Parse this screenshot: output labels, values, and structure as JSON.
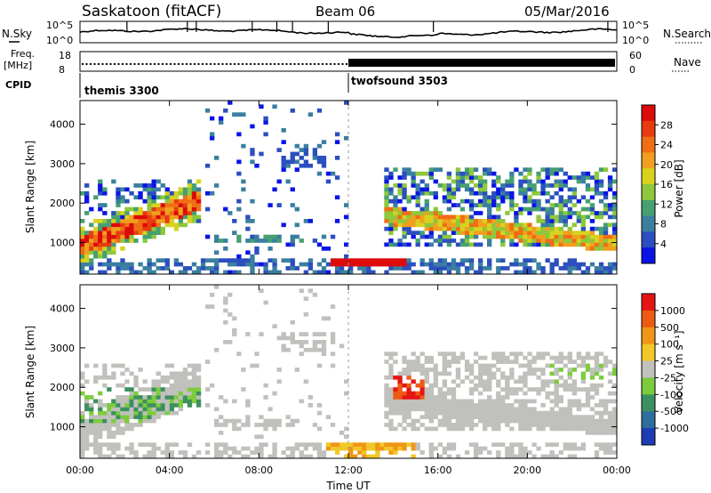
{
  "header": {
    "station": "Saskatoon (fitACF)",
    "beam": "Beam 06",
    "date": "05/Mar/2016"
  },
  "noise_panel": {
    "left_label": "N.Sky",
    "right_label": "N.Search",
    "y_ticks": [
      "10^5",
      "10^0"
    ]
  },
  "freq_panel": {
    "left_label_1": "Freq.",
    "left_label_2": "[MHz]",
    "left_ticks": [
      "18",
      "8"
    ],
    "right_label": "Nave",
    "right_ticks": [
      "60",
      "0"
    ]
  },
  "cpid": {
    "label": "CPID",
    "segments": [
      {
        "name": "themis 3300",
        "start_hour": 0
      },
      {
        "name": "twofsound 3503",
        "start_hour": 12
      }
    ]
  },
  "chart_data": [
    {
      "type": "heatmap",
      "title": "",
      "ylabel": "Slant Range [km]",
      "xlabel": "",
      "ylim": [
        200,
        4600
      ],
      "y_ticks": [
        1000,
        2000,
        3000,
        4000
      ],
      "colorbar": {
        "label": "Power [dB]",
        "ticks": [
          "4",
          "8",
          "12",
          "16",
          "20",
          "24",
          "28"
        ],
        "colors": [
          "#0a14e6",
          "#2b4fbf",
          "#3a7fa0",
          "#46a070",
          "#8ec83c",
          "#d8d21e",
          "#f0a01e",
          "#f06e14",
          "#e63c0f",
          "#dc0a0a"
        ]
      }
    },
    {
      "type": "heatmap",
      "title": "",
      "ylabel": "Slant Range [km]",
      "xlabel": "Time UT",
      "ylim": [
        200,
        4600
      ],
      "y_ticks": [
        1000,
        2000,
        3000,
        4000
      ],
      "x_ticks": [
        "00:00",
        "04:00",
        "08:00",
        "12:00",
        "16:00",
        "20:00",
        "00:00"
      ],
      "colorbar": {
        "label": "Velocity [m s⁻¹]",
        "ticks": [
          "1000",
          "500",
          "100",
          "25",
          "-25",
          "-100",
          "-500",
          "-1000"
        ],
        "colors": [
          "#1e3cb4",
          "#2e6e9e",
          "#3c9060",
          "#7ccc3c",
          "#c0c0bc",
          "#f0c828",
          "#f09616",
          "#ee5a14",
          "#e61414"
        ]
      }
    }
  ]
}
